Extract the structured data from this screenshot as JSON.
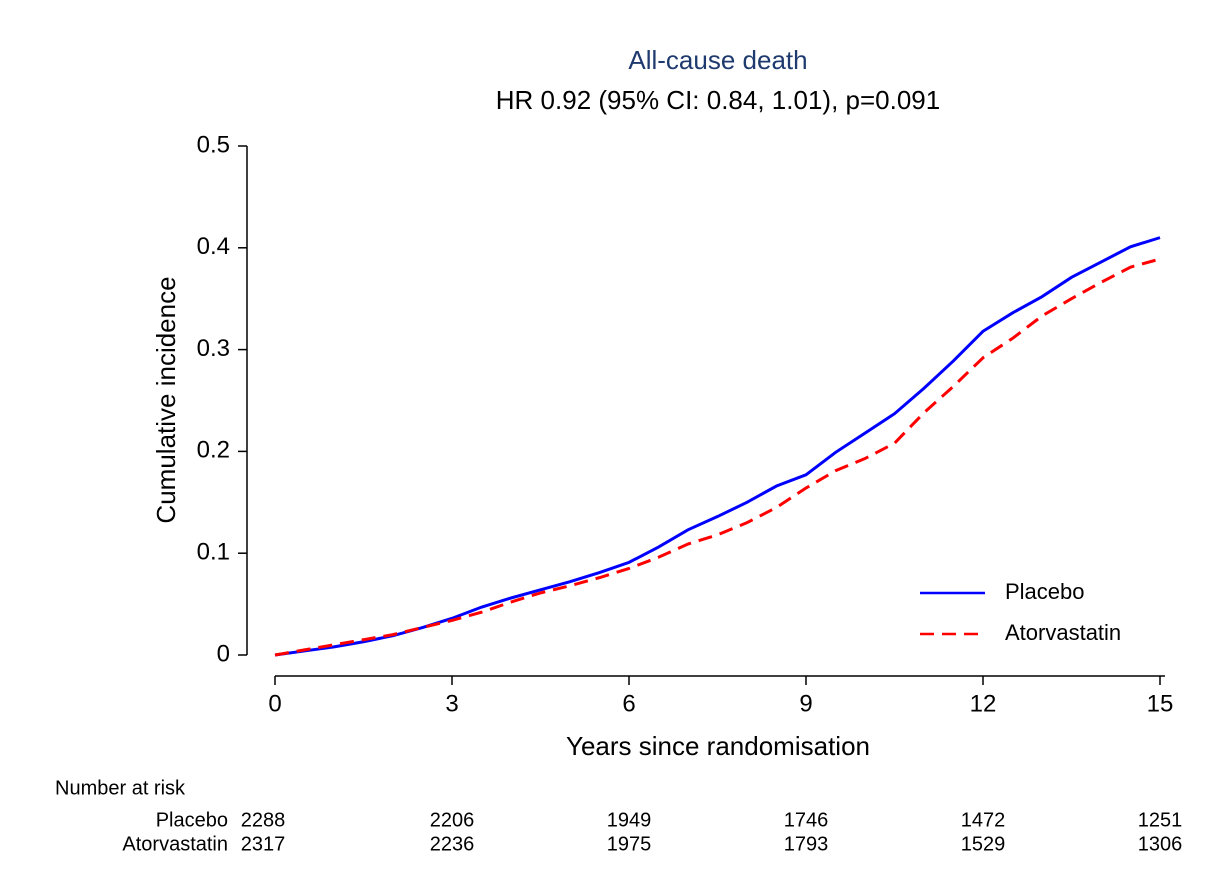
{
  "chart_data": {
    "type": "line",
    "title": "All-cause death",
    "subtitle": "HR 0.92 (95% CI: 0.84, 1.01), p=0.091",
    "title_color": "#1f3a6e",
    "x_label": "Years since randomisation",
    "y_label": "Cumulative incidence",
    "x": [
      0,
      0.5,
      1,
      1.5,
      2,
      2.5,
      3,
      3.5,
      4,
      4.5,
      5,
      5.5,
      6,
      6.5,
      7,
      7.5,
      8,
      8.5,
      9,
      9.5,
      10,
      10.5,
      11,
      11.5,
      12,
      12.5,
      13,
      13.5,
      14,
      14.5,
      15
    ],
    "series": [
      {
        "name": "Placebo",
        "color": "#0000ff",
        "dash": false,
        "values": [
          0,
          0.004,
          0.008,
          0.013,
          0.019,
          0.027,
          0.036,
          0.047,
          0.056,
          0.064,
          0.072,
          0.081,
          0.091,
          0.106,
          0.123,
          0.136,
          0.15,
          0.166,
          0.177,
          0.199,
          0.218,
          0.237,
          0.262,
          0.289,
          0.318,
          0.336,
          0.352,
          0.371,
          0.386,
          0.401,
          0.41
        ]
      },
      {
        "name": "Atorvastatin",
        "color": "#ff0000",
        "dash": true,
        "values": [
          0,
          0.005,
          0.01,
          0.015,
          0.02,
          0.027,
          0.034,
          0.042,
          0.052,
          0.061,
          0.068,
          0.076,
          0.085,
          0.096,
          0.109,
          0.118,
          0.13,
          0.145,
          0.164,
          0.181,
          0.193,
          0.208,
          0.238,
          0.264,
          0.292,
          0.311,
          0.333,
          0.35,
          0.366,
          0.381,
          0.389
        ]
      }
    ],
    "xlim": [
      0,
      15
    ],
    "ylim": [
      0,
      0.5
    ],
    "xticks": [
      0,
      3,
      6,
      9,
      12,
      15
    ],
    "yticks": [
      0,
      0.1,
      0.2,
      0.3,
      0.4,
      0.5
    ],
    "legend": "lower right",
    "risk_table": {
      "title": "Number at risk",
      "rows": [
        {
          "name": "Placebo",
          "values": [
            2288,
            2206,
            1949,
            1746,
            1472,
            1251
          ]
        },
        {
          "name": "Atorvastatin",
          "values": [
            2317,
            2236,
            1975,
            1793,
            1529,
            1306
          ]
        }
      ]
    }
  }
}
